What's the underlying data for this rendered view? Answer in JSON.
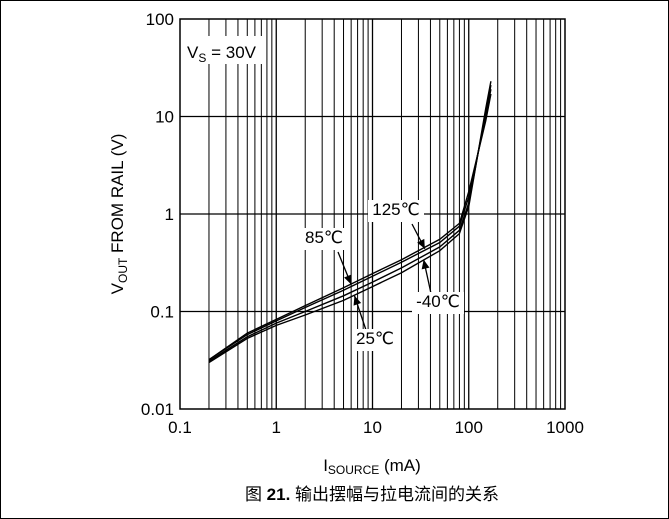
{
  "chart_data": {
    "type": "line",
    "x_scale": "log",
    "y_scale": "log",
    "xlim": [
      0.1,
      1000
    ],
    "ylim": [
      0.01,
      100
    ],
    "grid": true,
    "x_ticks": [
      {
        "v": 0.1,
        "label": "0.1"
      },
      {
        "v": 1,
        "label": "1"
      },
      {
        "v": 10,
        "label": "10"
      },
      {
        "v": 100,
        "label": "100"
      },
      {
        "v": 1000,
        "label": "1000"
      }
    ],
    "y_ticks": [
      {
        "v": 0.01,
        "label": "0.01"
      },
      {
        "v": 0.1,
        "label": "0.1"
      },
      {
        "v": 1,
        "label": "1"
      },
      {
        "v": 10,
        "label": "10"
      },
      {
        "v": 100,
        "label": "100"
      }
    ],
    "ylabel": {
      "main": "V",
      "sub": "OUT",
      "rest": " FROM RAIL (V)"
    },
    "xlabel": {
      "main": "I",
      "sub": "SOURCE",
      "rest": " (mA)"
    },
    "condition": {
      "main": "V",
      "sub": "S",
      "rest": " = 30V"
    },
    "series": [
      {
        "name": "125℃",
        "x": [
          0.2,
          0.5,
          1,
          2,
          5,
          10,
          20,
          50,
          80,
          100,
          150,
          170
        ],
        "y": [
          0.032,
          0.06,
          0.083,
          0.115,
          0.175,
          0.245,
          0.34,
          0.55,
          0.8,
          1.7,
          9.0,
          17.0
        ]
      },
      {
        "name": "85℃",
        "x": [
          0.2,
          0.5,
          1,
          2,
          5,
          10,
          20,
          50,
          80,
          100,
          150,
          170
        ],
        "y": [
          0.032,
          0.058,
          0.08,
          0.11,
          0.165,
          0.23,
          0.32,
          0.51,
          0.75,
          1.5,
          10.0,
          19.0
        ]
      },
      {
        "name": "25℃",
        "x": [
          0.2,
          0.5,
          1,
          2,
          5,
          10,
          20,
          50,
          80,
          100,
          150,
          170
        ],
        "y": [
          0.031,
          0.055,
          0.076,
          0.1,
          0.145,
          0.2,
          0.28,
          0.46,
          0.68,
          1.3,
          11.0,
          21.0
        ]
      },
      {
        "name": "-40℃",
        "x": [
          0.2,
          0.5,
          1,
          2,
          5,
          10,
          20,
          50,
          80,
          100,
          150,
          170
        ],
        "y": [
          0.03,
          0.053,
          0.072,
          0.092,
          0.13,
          0.18,
          0.25,
          0.42,
          0.63,
          1.2,
          12.0,
          23.0
        ]
      }
    ],
    "annotations": [
      {
        "text": "125℃",
        "arrow_to": [
          35,
          0.44
        ]
      },
      {
        "text": "85℃",
        "arrow_to": [
          6,
          0.19
        ]
      },
      {
        "text": "-40℃",
        "arrow_to": [
          34,
          0.34
        ]
      },
      {
        "text": "25℃",
        "arrow_to": [
          6.5,
          0.145
        ]
      }
    ]
  },
  "caption": {
    "prefix": "图 ",
    "number": "21.",
    "text": " 输出摆幅与拉电流间的关系"
  }
}
